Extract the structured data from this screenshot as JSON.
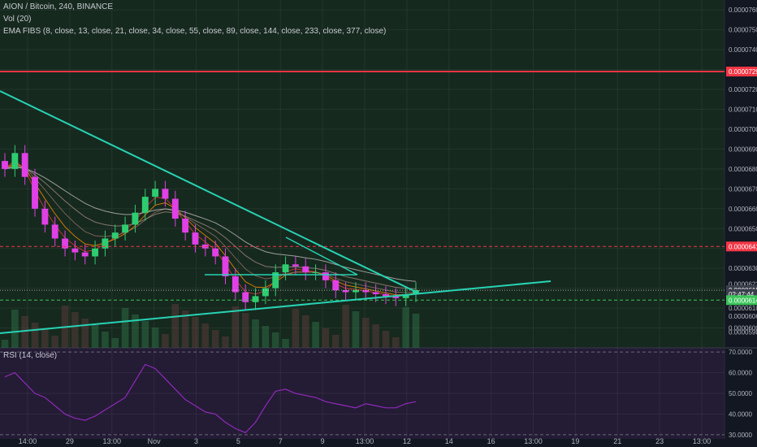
{
  "title": "AION / Bitcoin, 240, BINANCE",
  "indicators": {
    "vol": "Vol (20)",
    "ema": "EMA FIBS (8, close, 13, close, 21, close, 34, close, 55, close, 89, close, 144, close, 233, close, 377, close)",
    "rsi": "RSI (14, close)"
  },
  "colors": {
    "background": "#131722",
    "main_panel": "#16291e",
    "rsi_panel": "#241b35",
    "up_candle": "#2ecc71",
    "down_candle": "#e040e6",
    "trendline": "#27d3b4",
    "resistance": "#f23645",
    "support": "#3ac45a",
    "rsi_line": "#8e2bb8"
  },
  "price_axis": {
    "ticks": [
      "0.0000760",
      "0.0000750",
      "0.0000740",
      "0.0000730",
      "0.0000720",
      "0.0000710",
      "0.0000700",
      "0.0000690",
      "0.0000680",
      "0.0000670",
      "0.0000660",
      "0.0000650",
      "0.0000640",
      "0.0000630",
      "0.0000620",
      "0.0000610",
      "0.0000600",
      "0.0000590"
    ],
    "labels": [
      {
        "text": "0.0000729",
        "color": "#f23645"
      },
      {
        "text": "0.0000641",
        "color": "#f23645"
      },
      {
        "text": "0.0000622",
        "color": "#b2b5be"
      },
      {
        "text": "0.0000619",
        "color": "#ffffff"
      },
      {
        "text": "02:47:44",
        "color": "#ffffff"
      },
      {
        "text": "0.0000614",
        "color": "#3ac45a"
      },
      {
        "text": "0.0000606",
        "color": "#b2b5be"
      },
      {
        "text": "0.0000598",
        "color": "#b2b5be"
      }
    ]
  },
  "rsi_axis": {
    "ticks": [
      "70.0000",
      "60.0000",
      "50.0000",
      "40.0000",
      "30.0000"
    ]
  },
  "time_axis": {
    "ticks": [
      "14:00",
      "29",
      "13:00",
      "Nov",
      "3",
      "5",
      "7",
      "9",
      "13:00",
      "12",
      "14",
      "16",
      "13:00",
      "19",
      "21",
      "23",
      "13:00"
    ]
  },
  "chart_data": {
    "type": "candlestick",
    "symbol": "AION / Bitcoin",
    "interval": "240",
    "exchange": "BINANCE",
    "ylim": [
      5.9e-05,
      7.65e-05
    ],
    "horizontal_lines": [
      {
        "value": 7.29e-05,
        "style": "solid",
        "color": "#f23645"
      },
      {
        "value": 6.41e-05,
        "style": "dashed",
        "color": "#f23645"
      },
      {
        "value": 6.14e-05,
        "style": "dashed",
        "color": "#3ac45a"
      }
    ],
    "last_price": 6.19e-05,
    "close": [
      6.8e-05,
      6.88e-05,
      6.76e-05,
      6.6e-05,
      6.52e-05,
      6.45e-05,
      6.4e-05,
      6.38e-05,
      6.36e-05,
      6.4e-05,
      6.45e-05,
      6.48e-05,
      6.52e-05,
      6.58e-05,
      6.66e-05,
      6.7e-05,
      6.65e-05,
      6.55e-05,
      6.48e-05,
      6.42e-05,
      6.4e-05,
      6.36e-05,
      6.26e-05,
      6.18e-05,
      6.13e-05,
      6.16e-05,
      6.2e-05,
      6.28e-05,
      6.32e-05,
      6.31e-05,
      6.28e-05,
      6.28e-05,
      6.24e-05,
      6.19e-05,
      6.18e-05,
      6.19e-05,
      6.18e-05,
      6.17e-05,
      6.16e-05,
      6.15e-05,
      6.17e-05,
      6.19e-05
    ],
    "rsi": [
      58,
      60,
      55,
      50,
      48,
      44,
      40,
      38,
      37,
      39,
      42,
      45,
      48,
      56,
      64,
      62,
      57,
      52,
      47,
      44,
      41,
      40,
      36,
      33,
      31,
      36,
      44,
      51,
      52,
      50,
      49,
      48,
      46,
      45,
      44,
      43,
      45,
      44,
      43,
      43,
      45,
      46
    ],
    "rsi_ylim": [
      28,
      72
    ]
  }
}
